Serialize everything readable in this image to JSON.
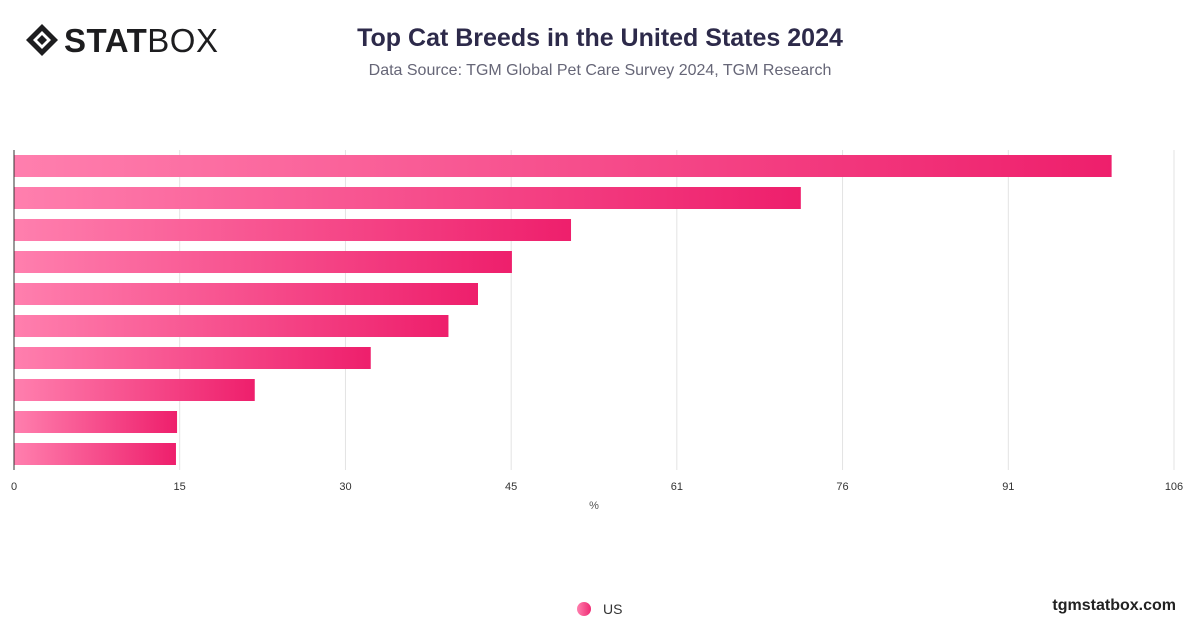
{
  "brand": {
    "bold": "STAT",
    "light": "BOX",
    "site": "tgmstatbox.com"
  },
  "header": {
    "title": "Top Cat Breeds in the United States 2024",
    "subtitle": "Data Source: TGM Global Pet Care Survey 2024, TGM Research"
  },
  "colors": {
    "bar_start": "#ff7fae",
    "bar_end": "#ee1f6c",
    "grid": "#e3e3e3",
    "axis": "#333333"
  },
  "chart_data": {
    "type": "bar",
    "orientation": "horizontal",
    "xlabel": "%",
    "xlim": [
      0,
      106
    ],
    "ticks": [
      "0",
      "15",
      "30",
      "45",
      "61",
      "76",
      "91",
      "106"
    ],
    "tick_values": [
      0,
      15.14,
      30.29,
      45.43,
      60.57,
      75.71,
      90.86,
      106
    ],
    "series": [
      {
        "name": "US",
        "values": [
          100.3,
          71.9,
          50.9,
          45.5,
          42.4,
          39.7,
          32.6,
          22.0,
          14.9,
          14.8
        ]
      }
    ],
    "legend": "bottom-center",
    "grid": true
  }
}
